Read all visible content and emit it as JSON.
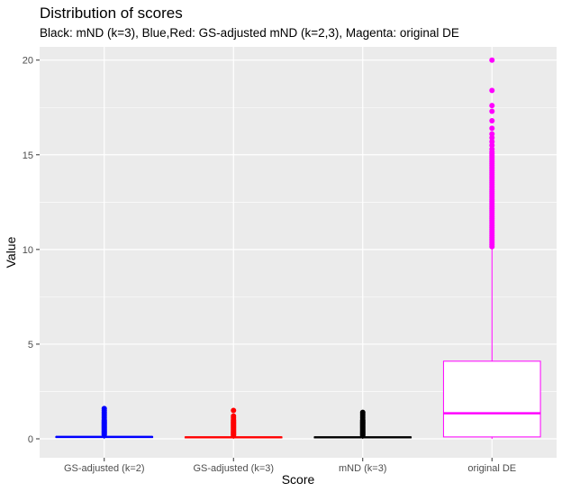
{
  "chart_data": {
    "type": "box",
    "title": "Distribution of scores",
    "subtitle": "Black: mND (k=3), Blue,Red: GS-adjusted mND (k=2,3), Magenta: original DE",
    "xlabel": "Score",
    "ylabel": "Value",
    "ylim": [
      -1.0,
      20.7
    ],
    "yticks": [
      0,
      5,
      10,
      15,
      20
    ],
    "grid": true,
    "legend": "none",
    "categories": [
      "GS-adjusted (k=2)",
      "GS-adjusted (k=3)",
      "mND (k=3)",
      "original DE"
    ],
    "boxes": [
      {
        "category": "GS-adjusted (k=2)",
        "color": "#0000ff",
        "q1": 0.08,
        "median": 0.1,
        "q3": 0.12,
        "whisker_low": 0.0,
        "whisker_high": 0.15,
        "outliers": [
          0.2,
          0.25,
          0.3,
          0.35,
          0.4,
          0.45,
          0.5,
          0.55,
          0.6,
          0.65,
          0.7,
          0.75,
          0.8,
          0.85,
          0.9,
          0.95,
          1.0,
          1.1,
          1.2,
          1.3,
          1.4,
          1.5,
          1.6
        ]
      },
      {
        "category": "GS-adjusted (k=3)",
        "color": "#ff0000",
        "q1": 0.06,
        "median": 0.08,
        "q3": 0.1,
        "whisker_low": 0.0,
        "whisker_high": 0.13,
        "outliers": [
          0.18,
          0.22,
          0.26,
          0.3,
          0.35,
          0.4,
          0.45,
          0.5,
          0.55,
          0.6,
          0.65,
          0.7,
          0.75,
          0.8,
          0.85,
          0.9,
          0.95,
          1.0,
          1.1,
          1.2,
          1.5
        ]
      },
      {
        "category": "mND (k=3)",
        "color": "#000000",
        "q1": 0.06,
        "median": 0.08,
        "q3": 0.1,
        "whisker_low": 0.0,
        "whisker_high": 0.13,
        "outliers": [
          0.18,
          0.22,
          0.26,
          0.3,
          0.35,
          0.4,
          0.45,
          0.5,
          0.55,
          0.6,
          0.65,
          0.7,
          0.75,
          0.8,
          0.85,
          0.9,
          0.95,
          1.0,
          1.1,
          1.2,
          1.3,
          1.4
        ]
      },
      {
        "category": "original DE",
        "color": "#ff00ff",
        "q1": 0.1,
        "median": 1.35,
        "q3": 4.1,
        "whisker_low": 0.0,
        "whisker_high": 10.1,
        "outliers": [
          10.15,
          10.25,
          10.35,
          10.45,
          10.55,
          10.65,
          10.75,
          10.85,
          10.95,
          11.05,
          11.15,
          11.25,
          11.35,
          11.45,
          11.55,
          11.65,
          11.75,
          11.85,
          11.95,
          12.05,
          12.15,
          12.25,
          12.35,
          12.45,
          12.55,
          12.65,
          12.75,
          12.85,
          12.95,
          13.05,
          13.15,
          13.25,
          13.35,
          13.45,
          13.55,
          13.65,
          13.75,
          13.85,
          13.95,
          14.05,
          14.15,
          14.25,
          14.35,
          14.45,
          14.55,
          14.65,
          14.75,
          14.85,
          14.95,
          15.05,
          15.15,
          15.3,
          15.5,
          15.7,
          15.9,
          16.1,
          16.4,
          16.8,
          17.3,
          17.6,
          18.4,
          20.0
        ]
      }
    ]
  }
}
